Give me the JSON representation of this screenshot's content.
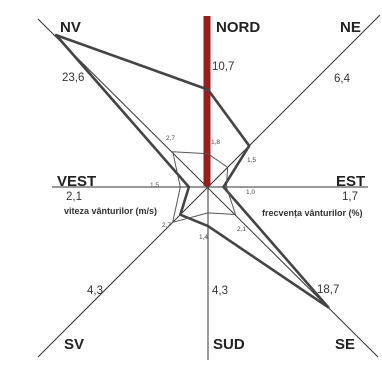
{
  "directions": {
    "n": "NORD",
    "ne": "NE",
    "e": "EST",
    "se": "SE",
    "s": "SUD",
    "sw": "SV",
    "w": "VEST",
    "nw": "NV"
  },
  "frequency_values": {
    "n": "10,7",
    "ne": "6,4",
    "e": "1,7",
    "se": "18,7",
    "s": "4,3",
    "sw": "4,3",
    "w": "2,1",
    "nw": "23,6"
  },
  "speed_values": {
    "n": "1,8",
    "ne": "1,5",
    "e": "1,0",
    "se": "2,1",
    "s": "1,4",
    "sw": "2,7",
    "w": "1,5",
    "nw": "2,7"
  },
  "legend": {
    "speed": "viteza vânturilor (m/s)",
    "frequency": "frecvența vânturilor (%)"
  },
  "colors": {
    "calm_bar": "#9b1c1f",
    "axes": "#333333",
    "frequency_line": "#444444",
    "speed_line": "#555555"
  },
  "chart_data": {
    "type": "radar",
    "categories": [
      "NORD",
      "NE",
      "EST",
      "SE",
      "SUD",
      "SV",
      "VEST",
      "NV"
    ],
    "series": [
      {
        "name": "frecvența vânturilor (%)",
        "values": [
          10.7,
          6.4,
          1.7,
          18.7,
          4.3,
          4.3,
          2.1,
          23.6
        ]
      },
      {
        "name": "viteza vânturilor (m/s)",
        "values": [
          1.8,
          1.5,
          1.0,
          2.1,
          1.4,
          2.7,
          1.5,
          2.7
        ]
      }
    ]
  }
}
